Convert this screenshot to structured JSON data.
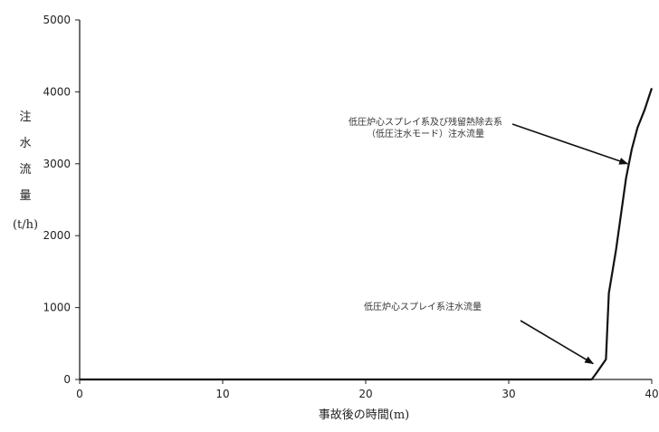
{
  "chart_data": {
    "type": "line",
    "xlabel": "事故後の時間(m)",
    "ylabel_chars": [
      "注",
      "水",
      "流",
      "量"
    ],
    "ylabel_unit": "(t/h)",
    "xlim": [
      0,
      40
    ],
    "ylim": [
      0,
      5000
    ],
    "xticks": [
      0,
      10,
      20,
      30,
      40
    ],
    "yticks": [
      0,
      1000,
      2000,
      3000,
      4000,
      5000
    ],
    "xtick_labels": [
      "0",
      "10",
      "20",
      "30",
      "40"
    ],
    "ytick_labels": [
      "0",
      "1000",
      "2000",
      "3000",
      "4000",
      "5000"
    ],
    "grid": false,
    "series": [
      {
        "color": "#111111",
        "x": [
          0,
          35.8,
          36.1,
          36.8,
          37.0,
          37.5,
          38.2,
          38.6,
          39.0,
          39.5,
          40.0
        ],
        "y": [
          0,
          0,
          80,
          280,
          1200,
          1800,
          2800,
          3200,
          3500,
          3750,
          4050
        ]
      }
    ],
    "annotations": [
      {
        "lines": [
          "低圧炉心スプレイ系及び残留熱除去系",
          "（低圧注水モード）注水流量"
        ],
        "arrow_to": [
          38.3,
          3000
        ]
      },
      {
        "lines": [
          "低圧炉心スプレイ系注水流量"
        ],
        "arrow_to": [
          35.9,
          220
        ]
      }
    ]
  }
}
